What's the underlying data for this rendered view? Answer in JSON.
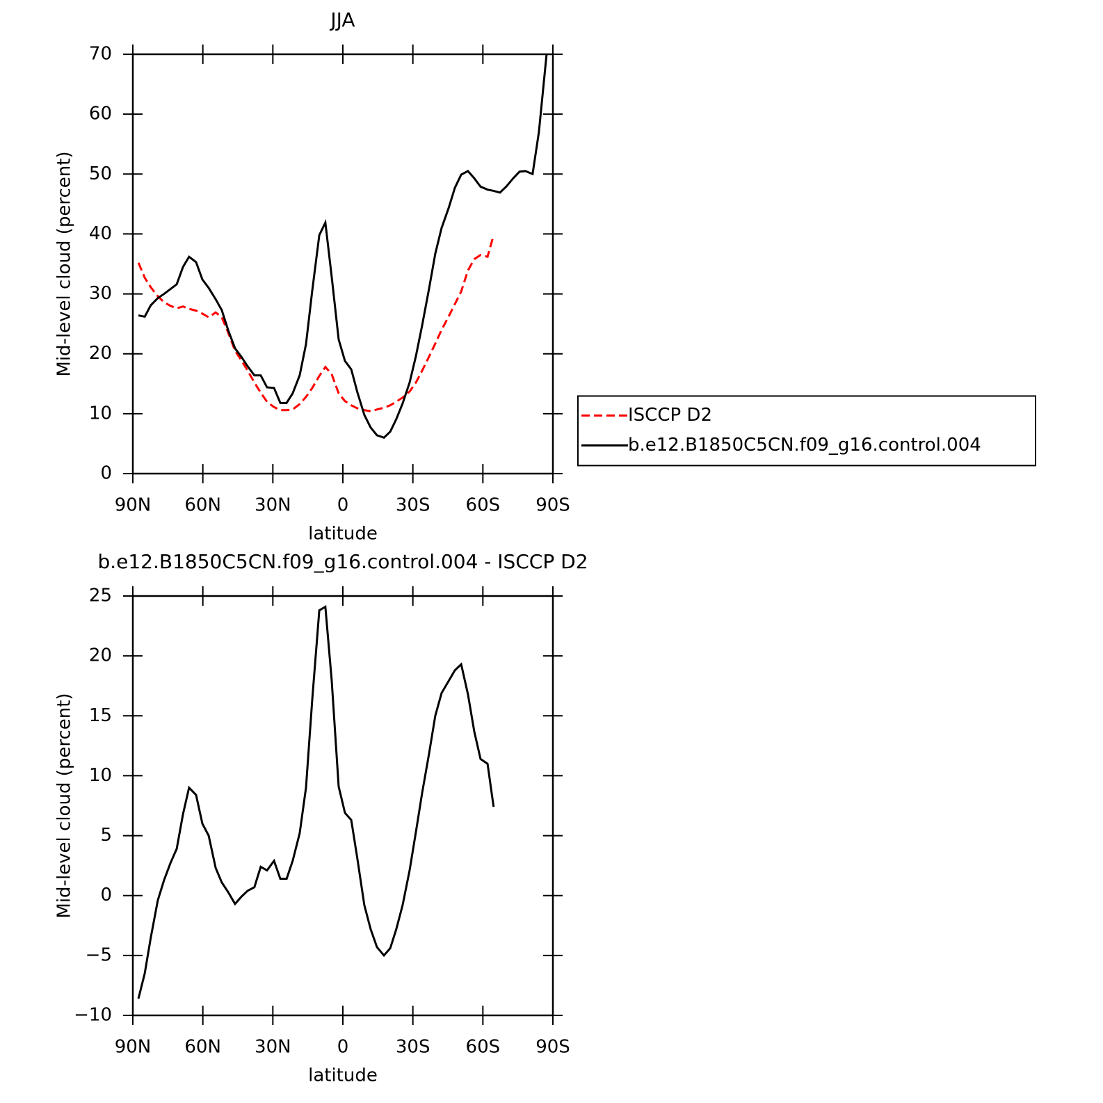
{
  "chart_data": [
    {
      "type": "line",
      "title": "JJA",
      "xlabel": "latitude",
      "ylabel": "Mid-level cloud (percent)",
      "legend": "right",
      "x": [
        87.6,
        84.9,
        82.3,
        79.3,
        76.6,
        73.9,
        71.2,
        68.5,
        65.9,
        62.9,
        60.2,
        57.5,
        54.5,
        51.9,
        49.2,
        46.2,
        43.5,
        40.8,
        37.9,
        35.2,
        32.5,
        29.5,
        26.8,
        24.1,
        21.5,
        18.5,
        15.8,
        13.1,
        10.1,
        7.5,
        4.8,
        1.8,
        -0.9,
        -3.6,
        -6.2,
        -9.2,
        -11.9,
        -14.6,
        -17.6,
        -20.3,
        -22.9,
        -25.6,
        -28.6,
        -31.3,
        -34.0,
        -36.9,
        -39.6,
        -42.3,
        -45.3,
        -48.0,
        -50.7,
        -53.6,
        -56.3,
        -59.0,
        -62.0,
        -64.6,
        -67.3,
        -70.0,
        -73.0,
        -75.7,
        -78.3,
        -81.3,
        -84.0,
        -87.3
      ],
      "series": [
        {
          "name": "ISCCP D2",
          "color": "#ff0000",
          "style": "dashed",
          "values": [
            35.2,
            32.7,
            31.1,
            29.6,
            28.6,
            28.0,
            27.6,
            27.9,
            27.5,
            27.2,
            26.7,
            26.1,
            26.9,
            26.1,
            23.6,
            20.5,
            18.9,
            17.2,
            15.2,
            13.5,
            12.0,
            11.1,
            10.6,
            10.6,
            10.7,
            11.6,
            12.8,
            14.3,
            16.3,
            17.8,
            16.6,
            13.4,
            12.1,
            11.4,
            10.9,
            10.6,
            10.4,
            10.7,
            11.0,
            11.4,
            12.0,
            12.7,
            13.7,
            15.2,
            17.2,
            19.5,
            21.7,
            24.0,
            26.2,
            28.3,
            30.4,
            33.9,
            35.8,
            36.5,
            36.2,
            39.8,
            null,
            null,
            null,
            null,
            null,
            null,
            null,
            null
          ]
        },
        {
          "name": "b.e12.B1850C5CN.f09_g16.control.004",
          "color": "#000000",
          "style": "solid",
          "values": [
            26.4,
            26.2,
            28.1,
            29.3,
            30.0,
            30.8,
            31.6,
            34.5,
            36.2,
            35.3,
            32.4,
            31.0,
            29.1,
            27.3,
            24.0,
            20.9,
            19.5,
            17.9,
            16.4,
            16.4,
            14.4,
            14.3,
            11.8,
            11.8,
            13.4,
            16.4,
            21.6,
            30.6,
            39.8,
            41.9,
            32.9,
            22.4,
            18.8,
            17.4,
            13.6,
            9.8,
            7.7,
            6.4,
            6.0,
            7.0,
            9.1,
            11.7,
            15.2,
            19.6,
            24.8,
            30.8,
            36.7,
            41.0,
            44.3,
            47.7,
            49.9,
            50.5,
            49.3,
            47.9,
            47.4,
            47.2,
            46.9,
            47.9,
            49.3,
            50.4,
            50.5,
            50.0,
            57.0,
            70
          ]
        }
      ],
      "xlim": [
        90,
        -90
      ],
      "xticks": [
        {
          "value": 90,
          "label": "90N"
        },
        {
          "value": 60,
          "label": "60N"
        },
        {
          "value": 30,
          "label": "30N"
        },
        0,
        {
          "value": -30,
          "label": "30S"
        },
        {
          "value": -60,
          "label": "60S"
        },
        {
          "value": -90,
          "label": "90S"
        }
      ],
      "ylim": [
        0,
        70
      ],
      "yticks": [
        0,
        10,
        20,
        30,
        40,
        50,
        60,
        70
      ]
    },
    {
      "type": "line",
      "title": "b.e12.B1850C5CN.f09_g16.control.004 - ISCCP D2",
      "xlabel": "latitude",
      "ylabel": "Mid-level cloud (percent)",
      "x": [
        87.6,
        84.9,
        82.3,
        79.3,
        76.6,
        73.9,
        71.2,
        68.5,
        65.9,
        62.9,
        60.2,
        57.5,
        54.5,
        51.9,
        49.2,
        46.2,
        43.5,
        40.8,
        37.9,
        35.2,
        32.5,
        29.5,
        26.8,
        24.1,
        21.5,
        18.5,
        15.8,
        13.1,
        10.1,
        7.5,
        4.8,
        1.8,
        -0.9,
        -3.6,
        -6.2,
        -9.2,
        -11.9,
        -14.6,
        -17.6,
        -20.3,
        -22.9,
        -25.6,
        -28.6,
        -31.3,
        -34.0,
        -36.9,
        -39.6,
        -42.3,
        -45.3,
        -48.0,
        -50.7,
        -53.6,
        -56.3,
        -59.0,
        -62.0,
        -64.6
      ],
      "series": [
        {
          "color": "#000000",
          "style": "solid",
          "values": [
            -8.6,
            -6.5,
            -3.5,
            -0.4,
            1.3,
            2.7,
            3.9,
            6.8,
            9.0,
            8.4,
            6.0,
            5.0,
            2.3,
            1.1,
            0.3,
            -0.7,
            -0.1,
            0.4,
            0.7,
            2.4,
            2.1,
            2.9,
            1.4,
            1.4,
            2.9,
            5.2,
            9.0,
            16.4,
            23.8,
            24.1,
            18.0,
            9.1,
            6.9,
            6.3,
            3.1,
            -0.8,
            -2.8,
            -4.3,
            -5.0,
            -4.4,
            -2.8,
            -0.8,
            2.1,
            5.3,
            8.6,
            11.8,
            15.0,
            16.9,
            17.9,
            18.8,
            19.3,
            16.8,
            13.7,
            11.4,
            11.0,
            7.4
          ]
        }
      ],
      "xlim": [
        90,
        -90
      ],
      "xticks": [
        {
          "value": 90,
          "label": "90N"
        },
        {
          "value": 60,
          "label": "60N"
        },
        {
          "value": 30,
          "label": "30N"
        },
        0,
        {
          "value": -30,
          "label": "30S"
        },
        {
          "value": -60,
          "label": "60S"
        },
        {
          "value": -90,
          "label": "90S"
        }
      ],
      "ylim": [
        -10,
        25
      ],
      "yticks": [
        {
          "value": -10,
          "label": "−10"
        },
        {
          "value": -5,
          "label": "−5"
        },
        0,
        5,
        10,
        15,
        20,
        25
      ]
    }
  ]
}
